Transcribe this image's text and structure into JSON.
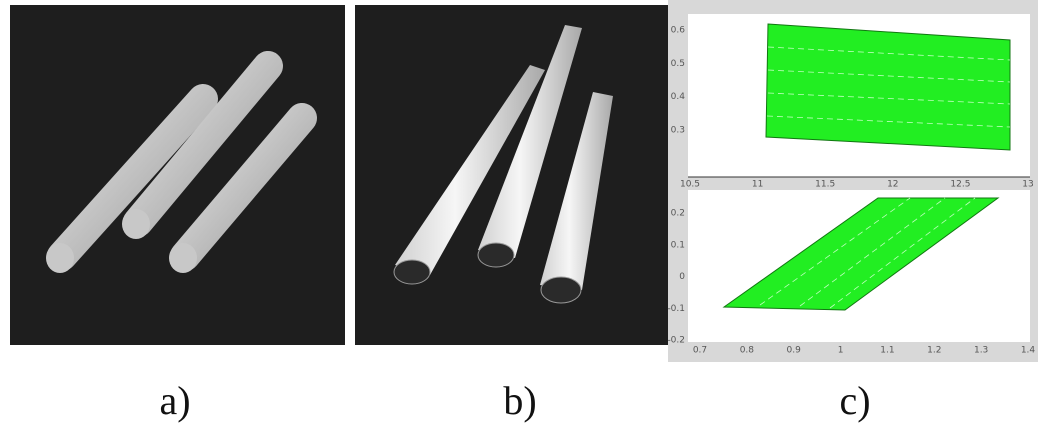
{
  "figure": {
    "panels": [
      {
        "label": "a)"
      },
      {
        "label": "b)"
      },
      {
        "label": "c)",
        "top_plot": {
          "xticks": [
            "10.5",
            "11",
            "11.5",
            "12",
            "12.5",
            "13"
          ],
          "yticks": [
            "0.6",
            "0.5",
            "0.4",
            "0.3"
          ]
        },
        "bottom_plot": {
          "xticks": [
            "0.7",
            "0.8",
            "0.9",
            "1",
            "1.1",
            "1.2",
            "1.3",
            "1.4"
          ],
          "yticks": [
            "0.2",
            "0.1",
            "0",
            "-0.1",
            "-0.2"
          ]
        }
      }
    ]
  }
}
